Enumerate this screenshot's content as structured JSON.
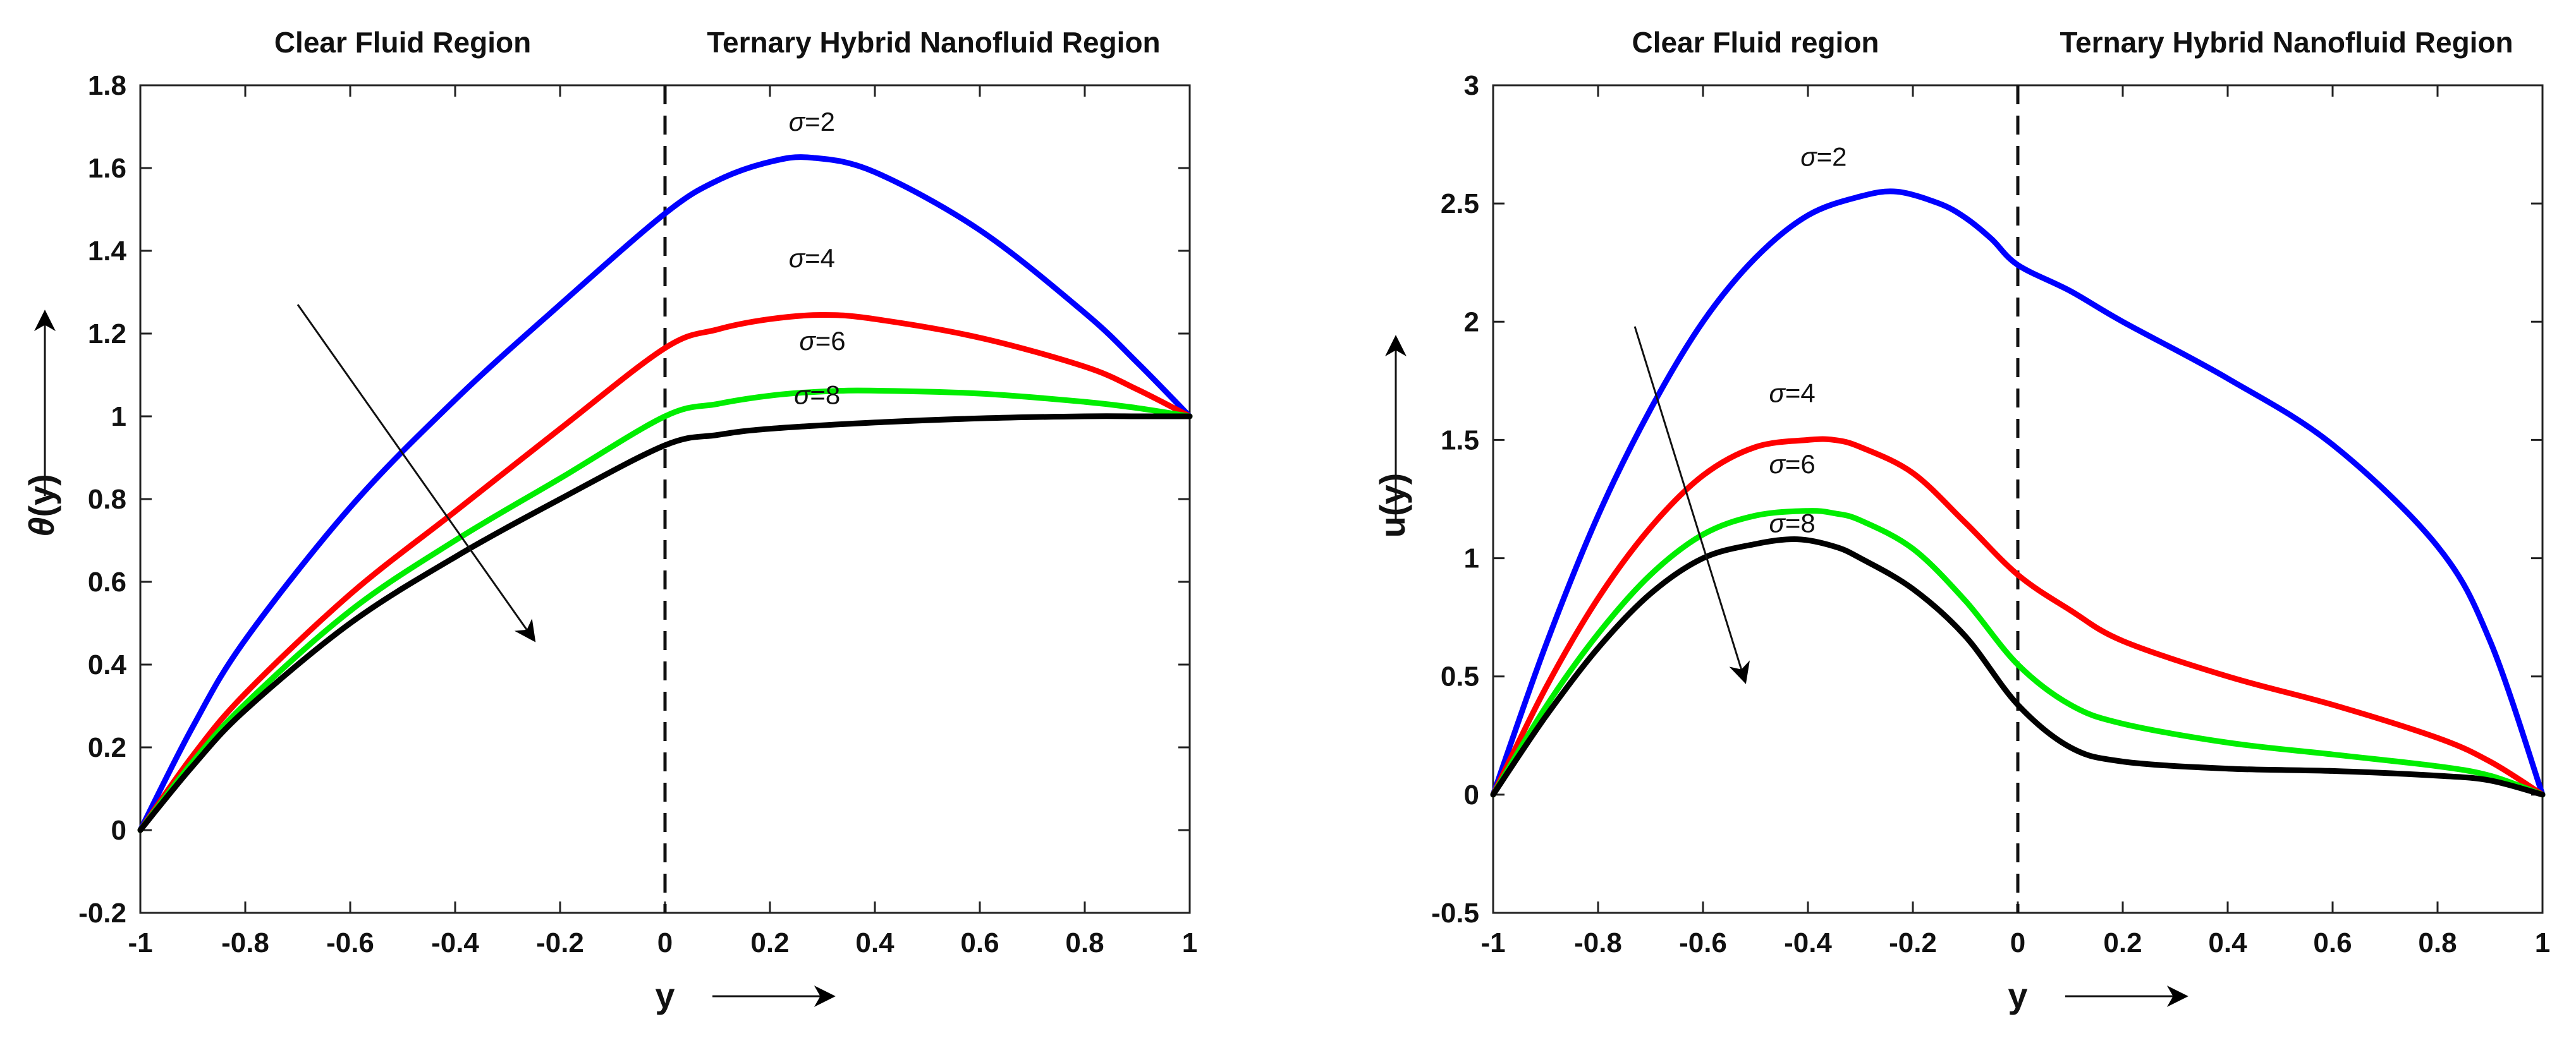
{
  "chart_data": [
    {
      "type": "line",
      "xlabel": "y",
      "ylabel": "θ(y)",
      "ylabel_symbol": "θ",
      "ylabel_rest": "(y)",
      "xlim": [
        -1,
        1
      ],
      "ylim": [
        -0.2,
        1.8
      ],
      "xticks": [
        -1,
        -0.8,
        -0.6,
        -0.4,
        -0.2,
        0,
        0.2,
        0.4,
        0.6,
        0.8,
        1
      ],
      "xtick_labels": [
        "-1",
        "-0.8",
        "-0.6",
        "-0.4",
        "-0.2",
        "0",
        "0.2",
        "0.4",
        "0.6",
        "0.8",
        "1"
      ],
      "yticks": [
        -0.2,
        0,
        0.2,
        0.4,
        0.6,
        0.8,
        1,
        1.2,
        1.4,
        1.6,
        1.8
      ],
      "ytick_labels": [
        "-0.2",
        "0",
        "0.2",
        "0.4",
        "0.6",
        "0.8",
        "1",
        "1.2",
        "1.4",
        "1.6",
        "1.8"
      ],
      "region_labels": {
        "left": "Clear Fluid Region",
        "right": "Ternary Hybrid Nanofluid Region"
      },
      "interface_x": 0,
      "trend_arrow": {
        "from": [
          -0.7,
          1.27
        ],
        "to": [
          -0.25,
          0.46
        ]
      },
      "series": [
        {
          "name": "σ=2",
          "param": "σ",
          "value": "=2",
          "color": "#0000ff",
          "label_at": [
            0.28,
            1.69
          ],
          "x": [
            -1,
            -0.9,
            -0.8,
            -0.6,
            -0.4,
            -0.2,
            0,
            0.1,
            0.2,
            0.28,
            0.4,
            0.6,
            0.8,
            0.9,
            1
          ],
          "y": [
            0,
            0.25,
            0.46,
            0.78,
            1.04,
            1.27,
            1.49,
            1.57,
            1.615,
            1.625,
            1.59,
            1.45,
            1.25,
            1.13,
            1.0
          ]
        },
        {
          "name": "σ=4",
          "param": "σ",
          "value": "=4",
          "color": "#ff0000",
          "label_at": [
            0.28,
            1.36
          ],
          "x": [
            -1,
            -0.9,
            -0.8,
            -0.6,
            -0.4,
            -0.2,
            0,
            0.1,
            0.2,
            0.3,
            0.4,
            0.6,
            0.8,
            0.9,
            1
          ],
          "y": [
            0,
            0.18,
            0.33,
            0.57,
            0.77,
            0.97,
            1.165,
            1.21,
            1.235,
            1.245,
            1.235,
            1.19,
            1.12,
            1.065,
            1.0
          ]
        },
        {
          "name": "σ=6",
          "param": "σ",
          "value": "=6",
          "color": "#00ee00",
          "label_at": [
            0.3,
            1.16
          ],
          "x": [
            -1,
            -0.9,
            -0.8,
            -0.6,
            -0.4,
            -0.2,
            0,
            0.1,
            0.2,
            0.3,
            0.4,
            0.6,
            0.8,
            0.9,
            1
          ],
          "y": [
            0,
            0.165,
            0.305,
            0.53,
            0.7,
            0.85,
            1.0,
            1.03,
            1.05,
            1.06,
            1.062,
            1.055,
            1.035,
            1.02,
            1.0
          ]
        },
        {
          "name": "σ=8",
          "param": "σ",
          "value": "=8",
          "color": "#000000",
          "label_at": [
            0.29,
            1.03
          ],
          "x": [
            -1,
            -0.9,
            -0.8,
            -0.6,
            -0.4,
            -0.2,
            0,
            0.1,
            0.2,
            0.4,
            0.6,
            0.8,
            0.9,
            1
          ],
          "y": [
            0,
            0.155,
            0.29,
            0.5,
            0.66,
            0.8,
            0.93,
            0.955,
            0.97,
            0.985,
            0.995,
            1.0,
            1.0,
            1.0
          ]
        }
      ]
    },
    {
      "type": "line",
      "xlabel": "y",
      "ylabel": "u(y)",
      "xlim": [
        -1,
        1
      ],
      "ylim": [
        -0.5,
        3
      ],
      "xticks": [
        -1,
        -0.8,
        -0.6,
        -0.4,
        -0.2,
        0,
        0.2,
        0.4,
        0.6,
        0.8,
        1
      ],
      "xtick_labels": [
        "-1",
        "-0.8",
        "-0.6",
        "-0.4",
        "-0.2",
        "0",
        "0.2",
        "0.4",
        "0.6",
        "0.8",
        "1"
      ],
      "yticks": [
        -0.5,
        0,
        0.5,
        1,
        1.5,
        2,
        2.5,
        3
      ],
      "ytick_labels": [
        "-0.5",
        "0",
        "0.5",
        "1",
        "1.5",
        "2",
        "2.5",
        "3"
      ],
      "region_labels": {
        "left": "Clear Fluid region",
        "right": "Ternary Hybrid Nanofluid Region"
      },
      "interface_x": 0,
      "trend_arrow": {
        "from": [
          -0.73,
          1.98
        ],
        "to": [
          -0.52,
          0.48
        ]
      },
      "series": [
        {
          "name": "σ=2",
          "param": "σ",
          "value": "=2",
          "color": "#0000ff",
          "label_at": [
            -0.37,
            2.66
          ],
          "x": [
            -1,
            -0.9,
            -0.8,
            -0.7,
            -0.6,
            -0.5,
            -0.4,
            -0.3,
            -0.23,
            -0.15,
            -0.1,
            -0.05,
            0,
            0.1,
            0.2,
            0.4,
            0.6,
            0.8,
            0.9,
            1
          ],
          "y": [
            0,
            0.63,
            1.18,
            1.63,
            2.0,
            2.27,
            2.45,
            2.53,
            2.55,
            2.5,
            2.44,
            2.35,
            2.24,
            2.13,
            2.0,
            1.76,
            1.48,
            1.05,
            0.65,
            0
          ]
        },
        {
          "name": "σ=4",
          "param": "σ",
          "value": "=4",
          "color": "#ff0000",
          "label_at": [
            -0.43,
            1.66
          ],
          "x": [
            -1,
            -0.9,
            -0.8,
            -0.7,
            -0.6,
            -0.5,
            -0.4,
            -0.35,
            -0.3,
            -0.2,
            -0.1,
            0,
            0.1,
            0.2,
            0.4,
            0.6,
            0.8,
            0.9,
            1
          ],
          "y": [
            0,
            0.45,
            0.83,
            1.13,
            1.35,
            1.47,
            1.5,
            1.5,
            1.47,
            1.36,
            1.15,
            0.93,
            0.78,
            0.65,
            0.5,
            0.38,
            0.24,
            0.14,
            0
          ]
        },
        {
          "name": "σ=6",
          "param": "σ",
          "value": "=6",
          "color": "#00ee00",
          "label_at": [
            -0.43,
            1.36
          ],
          "x": [
            -1,
            -0.9,
            -0.8,
            -0.7,
            -0.6,
            -0.5,
            -0.4,
            -0.35,
            -0.3,
            -0.2,
            -0.1,
            0,
            0.1,
            0.2,
            0.4,
            0.6,
            0.8,
            0.9,
            1
          ],
          "y": [
            0,
            0.37,
            0.68,
            0.93,
            1.1,
            1.18,
            1.2,
            1.19,
            1.16,
            1.04,
            0.82,
            0.55,
            0.38,
            0.3,
            0.22,
            0.17,
            0.12,
            0.08,
            0
          ]
        },
        {
          "name": "σ=8",
          "param": "σ",
          "value": "=8",
          "color": "#000000",
          "label_at": [
            -0.43,
            1.11
          ],
          "x": [
            -1,
            -0.9,
            -0.8,
            -0.7,
            -0.6,
            -0.5,
            -0.42,
            -0.35,
            -0.3,
            -0.2,
            -0.1,
            0,
            0.1,
            0.2,
            0.4,
            0.6,
            0.8,
            0.9,
            1
          ],
          "y": [
            0,
            0.33,
            0.62,
            0.85,
            1.0,
            1.06,
            1.08,
            1.05,
            1.0,
            0.87,
            0.67,
            0.38,
            0.2,
            0.14,
            0.11,
            0.1,
            0.08,
            0.06,
            0
          ]
        }
      ]
    }
  ]
}
